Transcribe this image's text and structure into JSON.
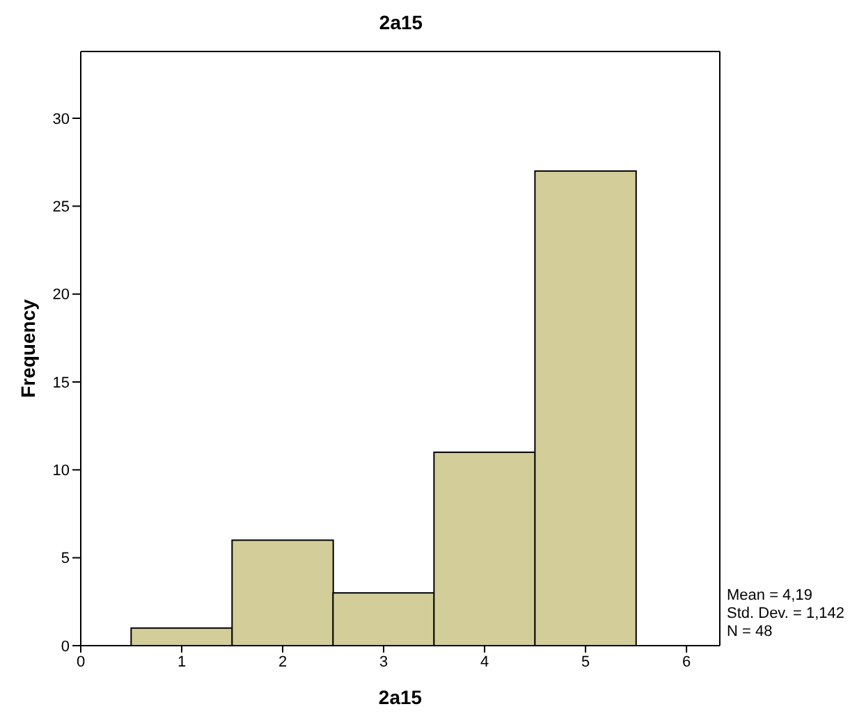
{
  "chart_data": {
    "type": "histogram",
    "title": "2a15",
    "xlabel": "2a15",
    "ylabel": "Frequency",
    "bins": [
      0.5,
      1.5,
      2.5,
      3.5,
      4.5,
      5.5
    ],
    "values": [
      1,
      6,
      3,
      11,
      27
    ],
    "color": "#d3ce99",
    "xlim": [
      0,
      6.33
    ],
    "xticks": [
      0,
      1,
      2,
      3,
      4,
      5,
      6
    ],
    "ylim": [
      0,
      33.8
    ],
    "yticks": [
      0,
      5,
      10,
      15,
      20,
      25,
      30
    ],
    "grid": false,
    "annotations": [
      "Mean = 4,19",
      "Std. Dev. = 1,142",
      "N = 48"
    ]
  }
}
